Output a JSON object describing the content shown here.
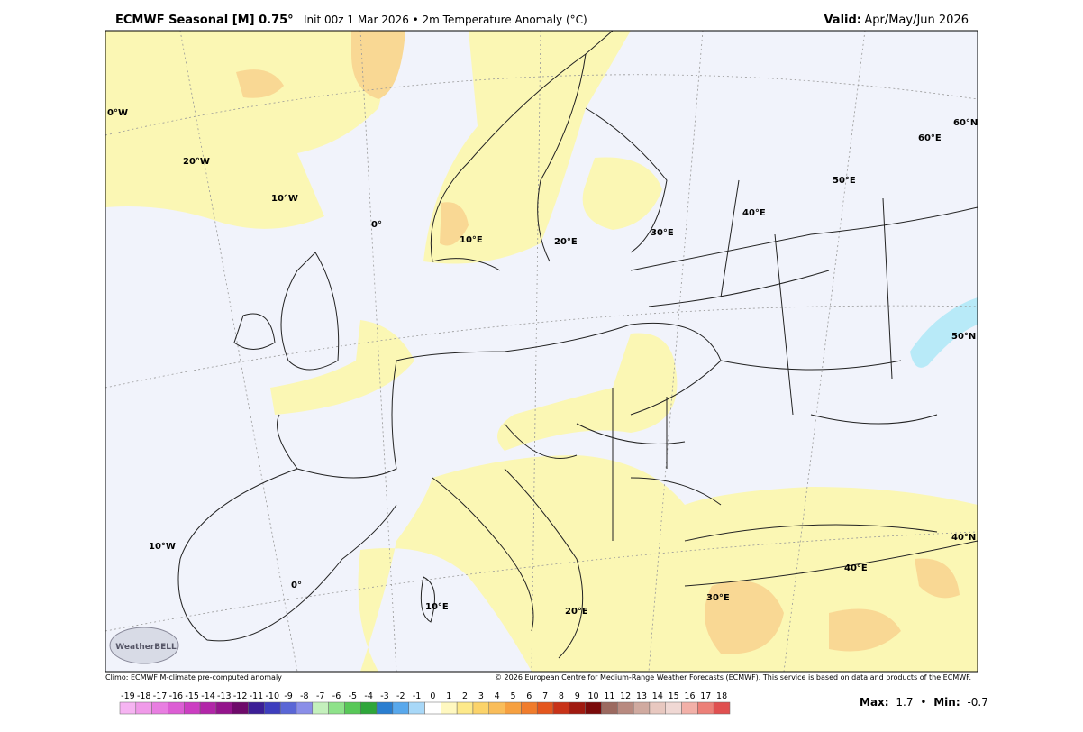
{
  "header": {
    "title": "ECMWF Seasonal [M] 0.75°",
    "subtitle": "Init 00z 1 Mar 2026 • 2m Temperature Anomaly (°C)",
    "valid_label": "Valid:",
    "valid_value": "Apr/May/Jun 2026"
  },
  "map": {
    "labels": [
      "0°W",
      "20°W",
      "10°W",
      "0°",
      "10°E",
      "20°E",
      "30°E",
      "40°E",
      "50°E",
      "60°E",
      "60°N",
      "50°N",
      "40°N",
      "40°E",
      "30°E",
      "20°E",
      "10°E",
      "0°",
      "10°W"
    ],
    "logo": "WeatherBELL"
  },
  "footer": {
    "left": "Climo: ECMWF M-climate pre-computed anomaly",
    "right": "© 2026 European Centre for Medium-Range Weather Forecasts (ECMWF). This service is based on data and products of the ECMWF."
  },
  "colorbar": {
    "ticks": [
      -19,
      -18,
      -17,
      -16,
      -15,
      -14,
      -13,
      -12,
      -11,
      -10,
      -9,
      -8,
      -7,
      -6,
      -5,
      -4,
      -3,
      -2,
      -1,
      0,
      1,
      2,
      3,
      4,
      5,
      6,
      7,
      8,
      9,
      10,
      11,
      12,
      13,
      14,
      15,
      16,
      17,
      18
    ],
    "colors": [
      "#f6b4f2",
      "#f09ae9",
      "#e87ee1",
      "#dc5ed4",
      "#cc3ec2",
      "#b226a8",
      "#94148c",
      "#6e0a6a",
      "#3c1e96",
      "#3e3ebe",
      "#5a66d6",
      "#8a8ee8",
      "#c4f0bc",
      "#8ee28a",
      "#58c858",
      "#2ea63a",
      "#2a7ed0",
      "#58a8ec",
      "#a8d8f8",
      "#ffffff",
      "#fff8c0",
      "#fde98a",
      "#fbd36a",
      "#f9bd5a",
      "#f6a040",
      "#f07c2c",
      "#e4561e",
      "#c83218",
      "#a01a10",
      "#7a0a0a",
      "#9c6a60",
      "#b88a80",
      "#d0aaa0",
      "#e8c8c0",
      "#f0d8d4",
      "#f2b0a8",
      "#ec8078",
      "#e05050"
    ]
  },
  "stats": {
    "max_label": "Max:",
    "max": 1.7,
    "separator": "•",
    "min_label": "Min:",
    "min": -0.7
  }
}
